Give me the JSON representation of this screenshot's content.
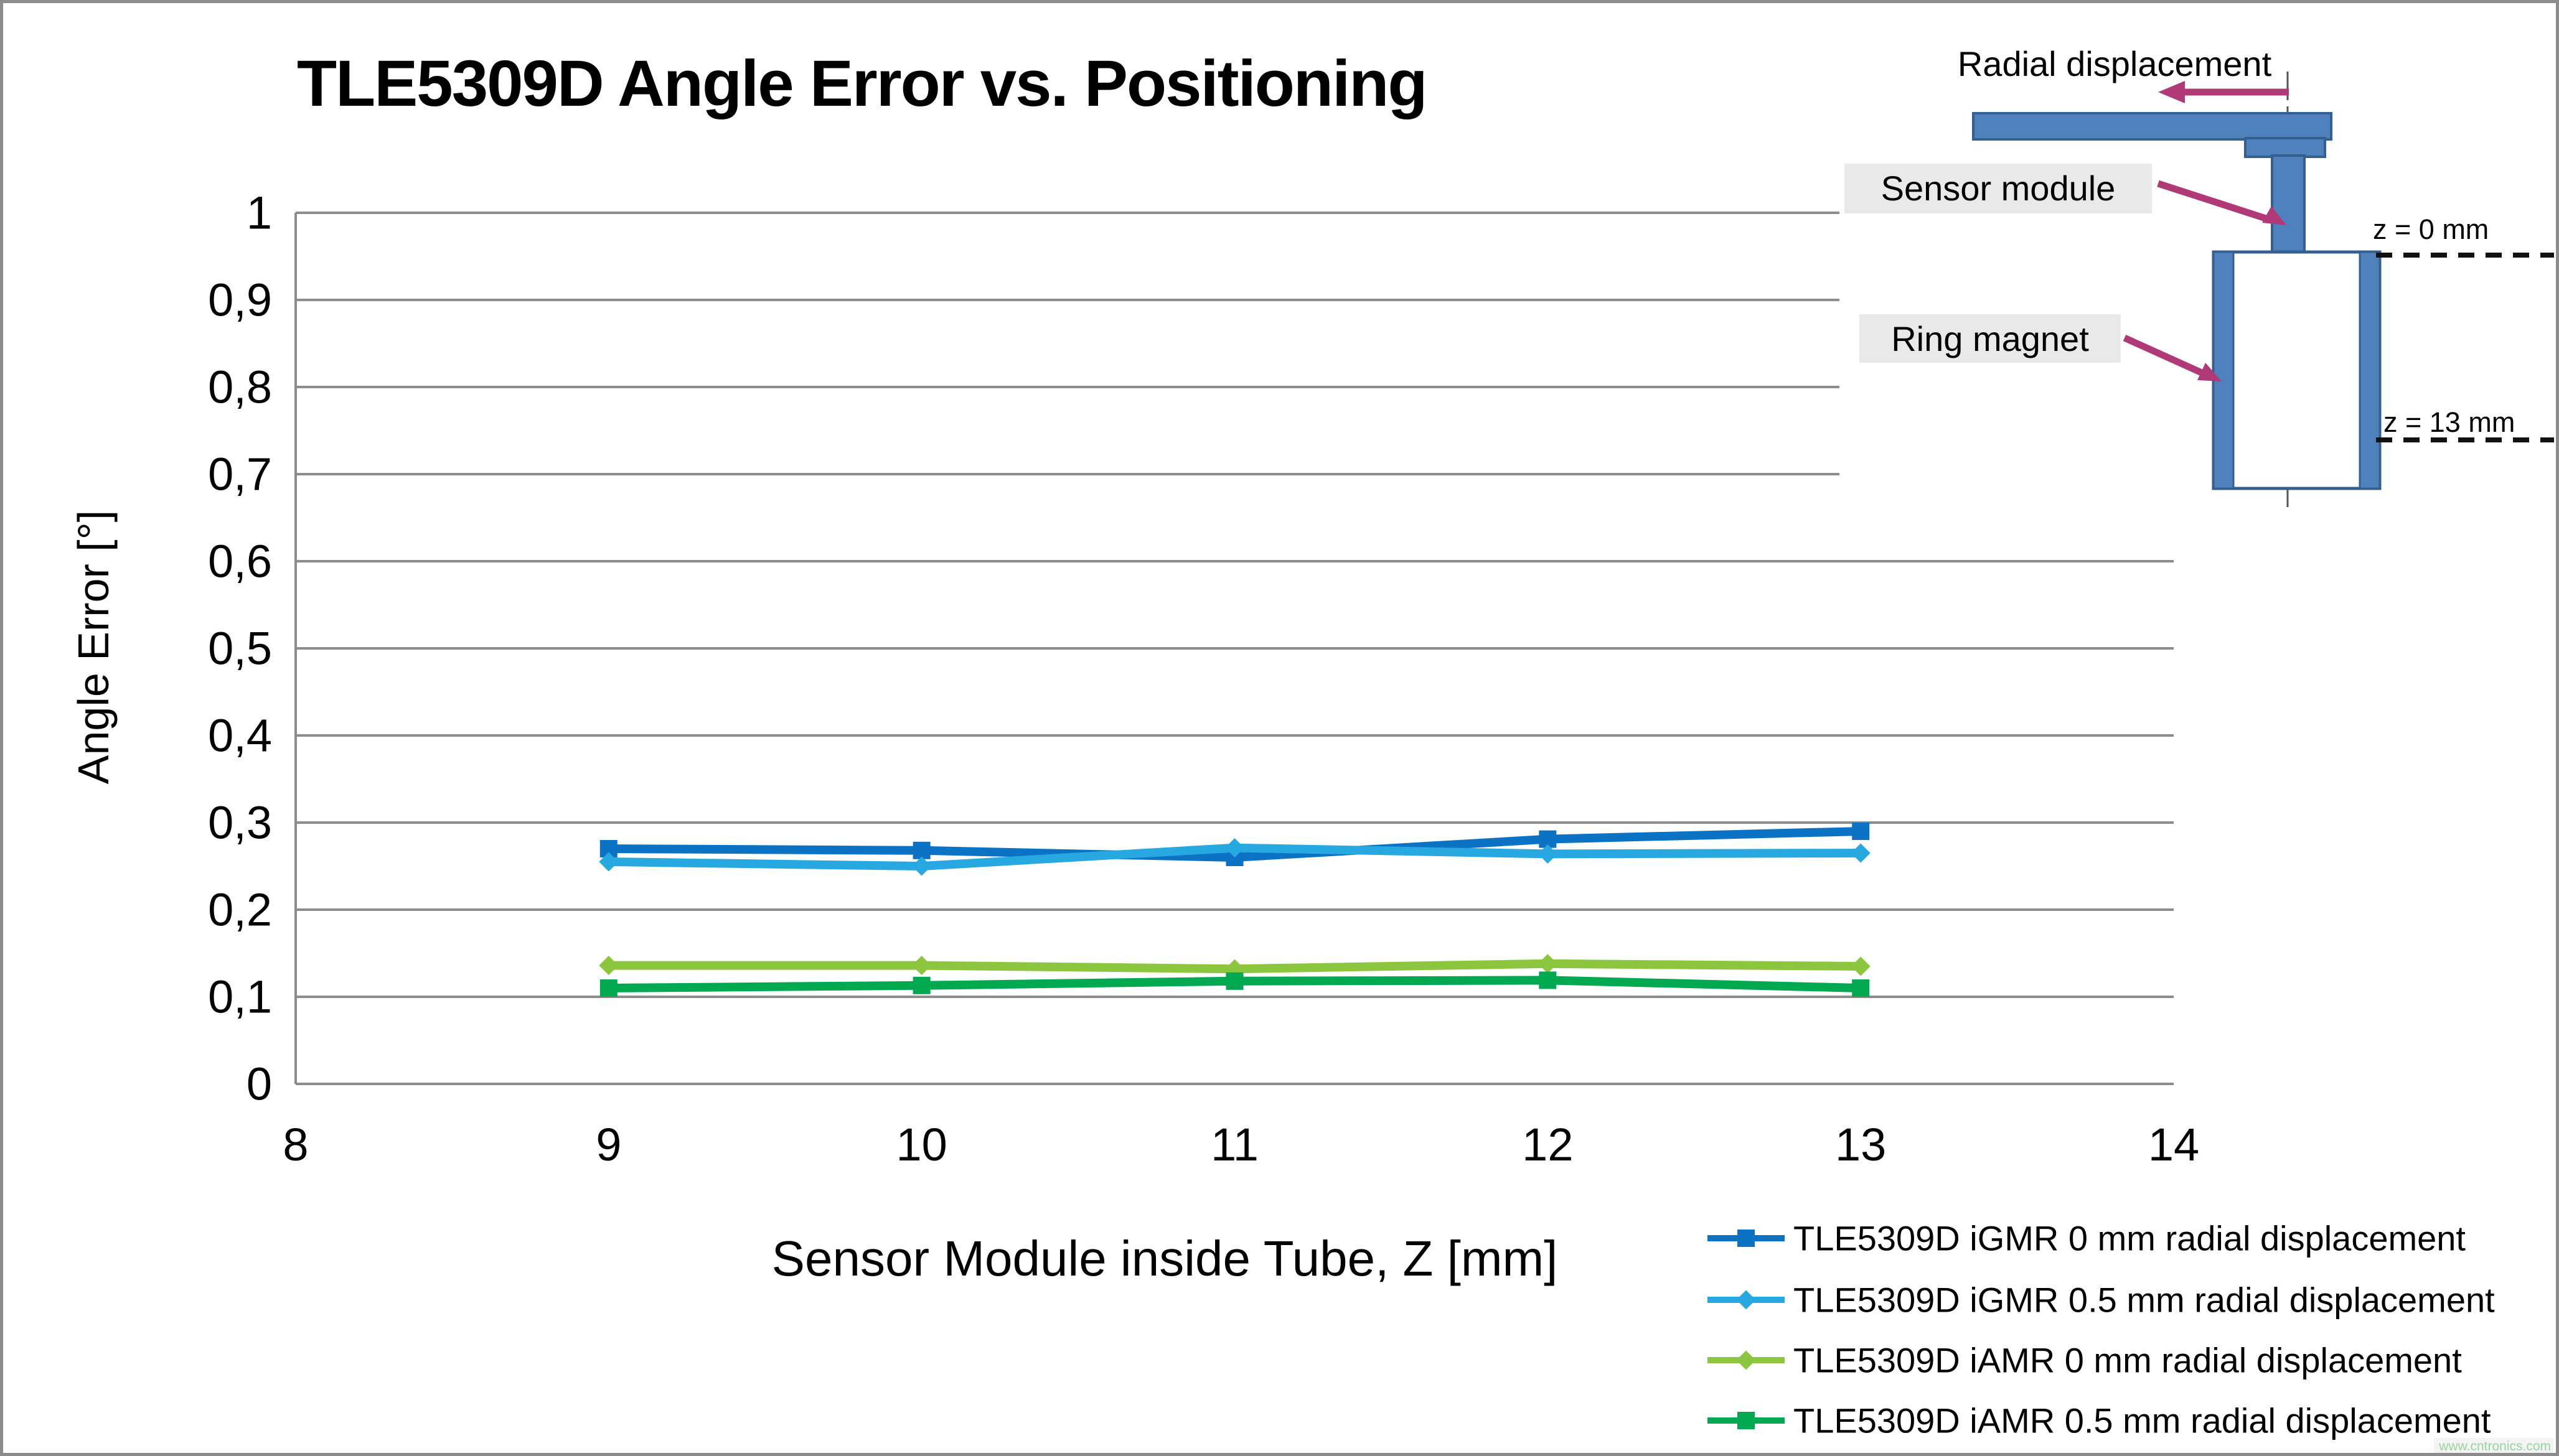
{
  "header": {
    "title": "TLE5309D Angle Error vs. Positioning"
  },
  "chart_data": {
    "type": "line",
    "title": "TLE5309D Angle Error vs. Positioning",
    "xlabel": "Sensor Module inside Tube, Z [mm]",
    "ylabel": "Angle Error [°]",
    "xlim": [
      8,
      14
    ],
    "ylim": [
      0,
      1
    ],
    "grid": "horizontal-only",
    "x_ticks": [
      "8",
      "9",
      "10",
      "11",
      "12",
      "13",
      "14"
    ],
    "y_ticks": [
      "1",
      "0,9",
      "0,8",
      "0,7",
      "0,6",
      "0,5",
      "0,4",
      "0,3",
      "0,2",
      "0,1",
      "0"
    ],
    "x": [
      9,
      10,
      11,
      12,
      13
    ],
    "series": [
      {
        "name": "TLE5309D iGMR 0 mm radial displacement",
        "color": "#0b72c4",
        "marker": "square",
        "values": [
          0.27,
          0.268,
          0.26,
          0.281,
          0.29
        ]
      },
      {
        "name": "TLE5309D iGMR 0.5 mm radial displacement",
        "color": "#27a8e0",
        "marker": "diamond",
        "values": [
          0.255,
          0.25,
          0.271,
          0.264,
          0.265
        ]
      },
      {
        "name": "TLE5309D iAMR 0 mm radial displacement",
        "color": "#8cc63f",
        "marker": "diamond",
        "values": [
          0.136,
          0.136,
          0.132,
          0.138,
          0.135
        ]
      },
      {
        "name": "TLE5309D iAMR 0.5 mm radial displacement",
        "color": "#00a94f",
        "marker": "square",
        "values": [
          0.11,
          0.113,
          0.118,
          0.119,
          0.11
        ]
      }
    ],
    "legend_position": "bottom-right",
    "gridline_color": "#8c8c8c"
  },
  "diagram": {
    "radial_label": "Radial displacement",
    "sensor_label": "Sensor module",
    "magnet_label": "Ring magnet",
    "z0_label": "z = 0 mm",
    "z13_label": "z = 13 mm",
    "shape_fill": "#4f81bd",
    "shape_border": "#365f91",
    "arrow_color": "#b03a77",
    "label_bg": "#e9e9e9"
  },
  "watermark": {
    "text": "www.cntronics.com",
    "color": "#97d4a0"
  }
}
